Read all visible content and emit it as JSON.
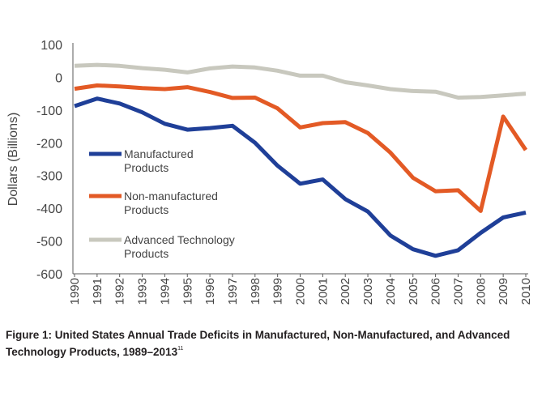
{
  "chart_data": {
    "type": "line",
    "title": "",
    "xlabel": "",
    "ylabel": "Dollars (Billions)",
    "ylim": [
      -600,
      100
    ],
    "yticks": [
      100,
      0,
      -100,
      -200,
      -300,
      -400,
      -500,
      -600
    ],
    "grid": false,
    "legend_position": "lower-left",
    "x": [
      "1990",
      "1991",
      "1992",
      "1993",
      "1994",
      "1995",
      "1996",
      "1997",
      "1998",
      "1999",
      "2000",
      "2001",
      "2002",
      "2003",
      "2004",
      "2005",
      "2006",
      "2007",
      "2008",
      "2009",
      "2010"
    ],
    "series": [
      {
        "name": "Manufactured Products",
        "label_lines": [
          "Manufactured",
          "Products"
        ],
        "color": "#1f3f98",
        "values": [
          -88,
          -65,
          -80,
          -107,
          -142,
          -160,
          -155,
          -148,
          -200,
          -270,
          -325,
          -312,
          -372,
          -410,
          -483,
          -525,
          -545,
          -528,
          -475,
          -428,
          -413
        ]
      },
      {
        "name": "Non-manufactured Products",
        "label_lines": [
          "Non-manufactured",
          "Products"
        ],
        "color": "#e35a25",
        "values": [
          -35,
          -25,
          -28,
          -33,
          -36,
          -30,
          -45,
          -63,
          -62,
          -95,
          -153,
          -140,
          -137,
          -170,
          -230,
          -307,
          -348,
          -345,
          -408,
          -120,
          -222
        ]
      },
      {
        "name": "Advanced Technology Products",
        "label_lines": [
          "Advanced Technology",
          "Products"
        ],
        "color": "#c8c8be",
        "values": [
          35,
          38,
          35,
          28,
          23,
          15,
          27,
          33,
          30,
          20,
          5,
          5,
          -15,
          -25,
          -36,
          -42,
          -44,
          -62,
          -60,
          -55,
          -50
        ]
      }
    ]
  },
  "caption": {
    "text": "Figure 1: United States Annual Trade Deficits in Manufactured, Non-Manufactured, and Advanced Technology Products, 1989–2013",
    "footnote": "11"
  }
}
